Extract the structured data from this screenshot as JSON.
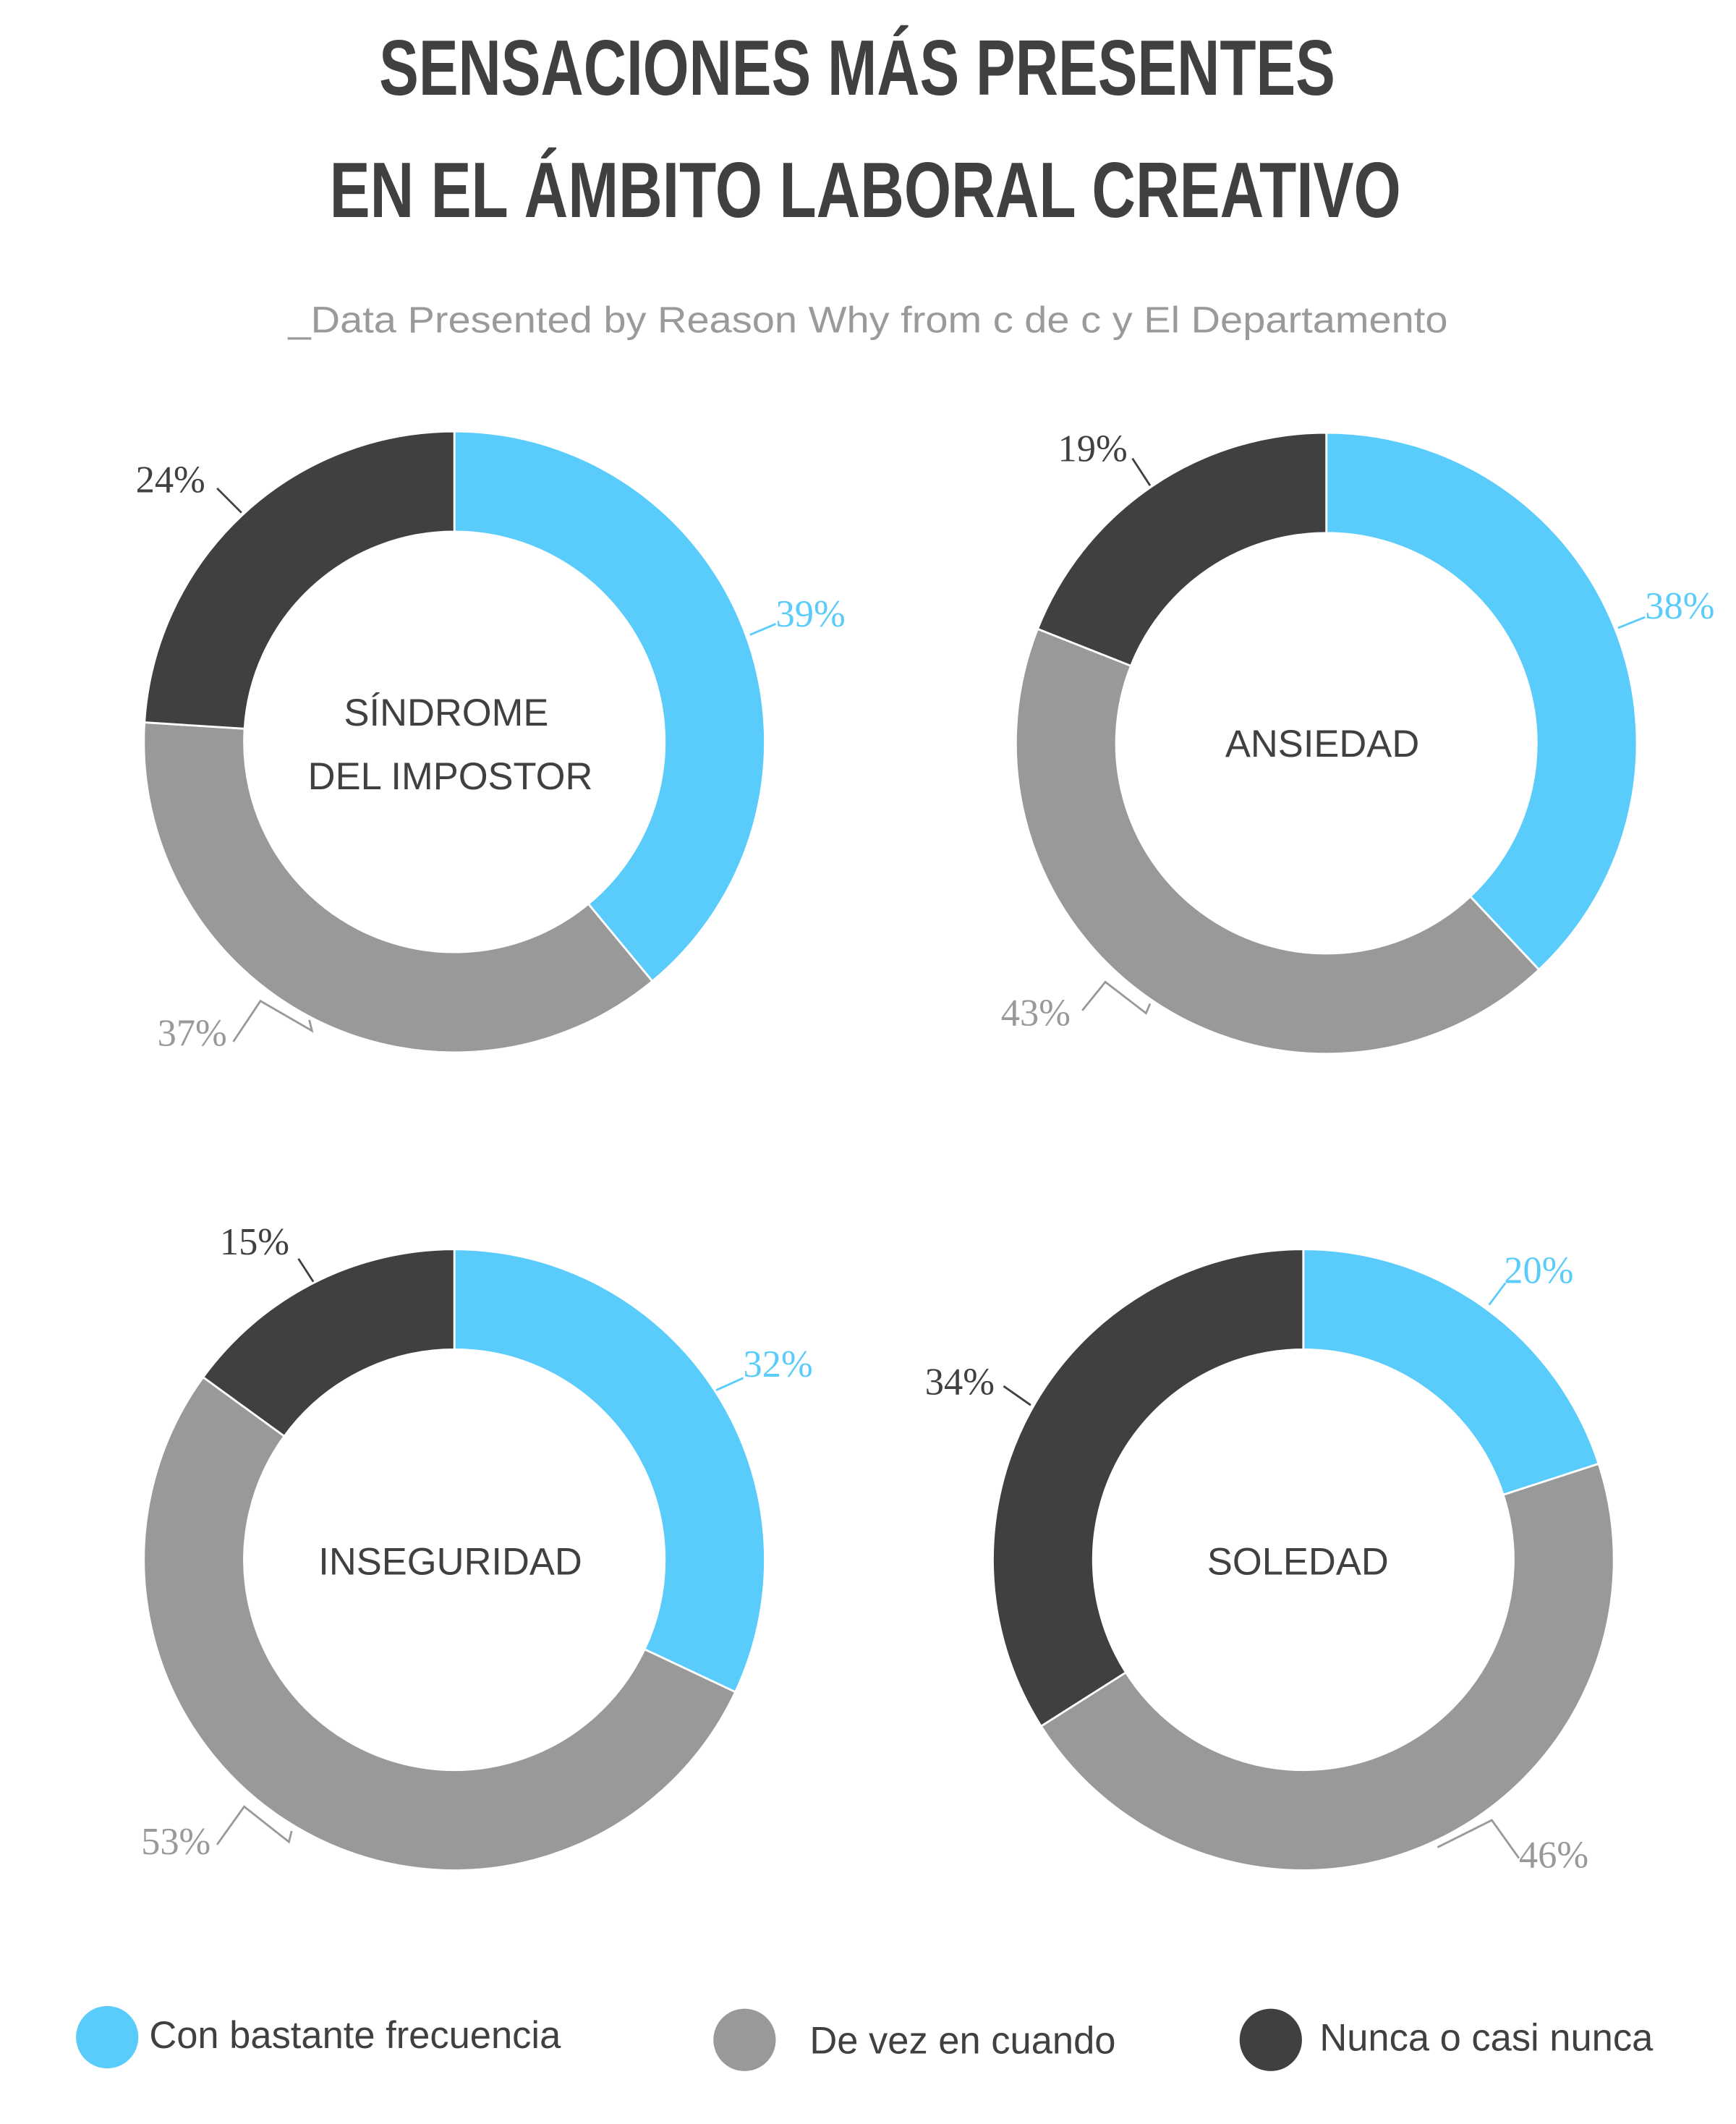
{
  "title_line1": "SENSACIONES MÁS PRESENTES",
  "title_line2": "EN EL ÁMBITO LABORAL CREATIVO",
  "subtitle": "_Data Presented by Reason Why from c de c y El Departamento",
  "colors": {
    "frequent": "#5accfc",
    "sometimes": "#999999",
    "never": "#404040"
  },
  "chart_data": [
    {
      "type": "pie",
      "title": "SÍNDROME DEL IMPOSTOR",
      "title_lines": [
        "SÍNDROME",
        "DEL IMPOSTOR"
      ],
      "categories": [
        "Con bastante frecuencia",
        "De vez en cuando",
        "Nunca o casi nunca"
      ],
      "values": [
        39,
        37,
        24
      ],
      "labels": [
        "39%",
        "37%",
        "24%"
      ]
    },
    {
      "type": "pie",
      "title": "ANSIEDAD",
      "title_lines": [
        "ANSIEDAD"
      ],
      "categories": [
        "Con bastante frecuencia",
        "De vez en cuando",
        "Nunca o casi nunca"
      ],
      "values": [
        38,
        43,
        19
      ],
      "labels": [
        "38%",
        "43%",
        "19%"
      ]
    },
    {
      "type": "pie",
      "title": "INSEGURIDAD",
      "title_lines": [
        "INSEGURIDAD"
      ],
      "categories": [
        "Con bastante frecuencia",
        "De vez en cuando",
        "Nunca o casi nunca"
      ],
      "values": [
        32,
        53,
        15
      ],
      "labels": [
        "32%",
        "53%",
        "15%"
      ]
    },
    {
      "type": "pie",
      "title": "SOLEDAD",
      "title_lines": [
        "SOLEDAD"
      ],
      "categories": [
        "Con bastante frecuencia",
        "De vez en cuando",
        "Nunca o casi nunca"
      ],
      "values": [
        20,
        46,
        34
      ],
      "labels": [
        "20%",
        "46%",
        "34%"
      ]
    }
  ],
  "legend": [
    {
      "label": "Con bastante frecuencia",
      "color": "#5accfc"
    },
    {
      "label": "De vez en cuando",
      "color": "#999999"
    },
    {
      "label": "Nunca o casi nunca",
      "color": "#404040"
    }
  ]
}
